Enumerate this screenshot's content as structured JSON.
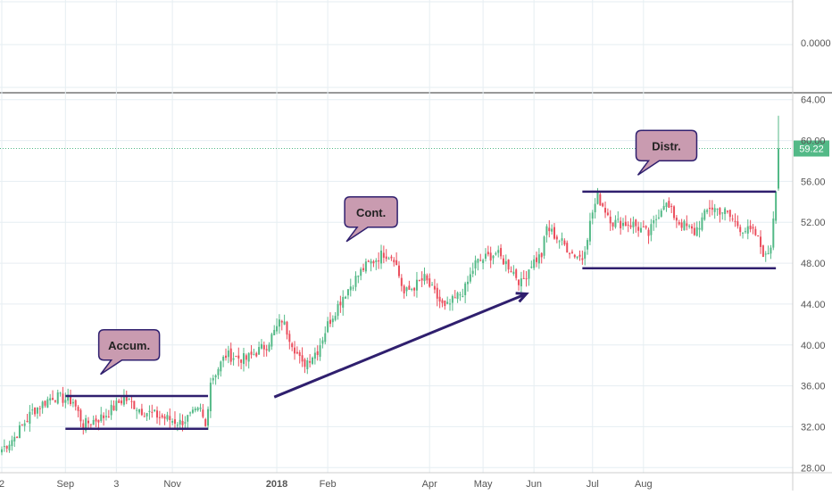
{
  "colors": {
    "up": "#53b987",
    "down": "#eb4d5c",
    "grid": "#e6eef2",
    "axis_text": "#555555",
    "annotation_line": "#2f1f6e",
    "callout_fill": "#c99bb0",
    "callout_stroke": "#2f1f6e",
    "price_tag": "#53b987",
    "separator": "#333333"
  },
  "top_pane": {
    "axis_label": "0.0000"
  },
  "chart_data": {
    "type": "candlestick",
    "title": "",
    "xlabel": "",
    "ylabel": "",
    "ylim": [
      27.5,
      64.5
    ],
    "y_ticks": [
      "28.00",
      "32.00",
      "36.00",
      "40.00",
      "44.00",
      "48.00",
      "52.00",
      "56.00",
      "60.00",
      "64.00"
    ],
    "x_ticks": [
      "2",
      "Sep",
      "3",
      "Nov",
      "2018",
      "Feb",
      "Apr",
      "May",
      "Jun",
      "Jul",
      "Aug"
    ],
    "last_price": "59.22",
    "grid": true,
    "anchors": [
      {
        "i": 0,
        "v": 29.8
      },
      {
        "i": 5,
        "v": 31.0
      },
      {
        "i": 12,
        "v": 33.5
      },
      {
        "i": 20,
        "v": 35.0
      },
      {
        "i": 28,
        "v": 34.5
      },
      {
        "i": 32,
        "v": 32.2
      },
      {
        "i": 40,
        "v": 33.0
      },
      {
        "i": 48,
        "v": 34.8
      },
      {
        "i": 55,
        "v": 33.6
      },
      {
        "i": 62,
        "v": 33.0
      },
      {
        "i": 70,
        "v": 32.4
      },
      {
        "i": 78,
        "v": 33.6
      },
      {
        "i": 80,
        "v": 32.0
      },
      {
        "i": 82,
        "v": 36.5
      },
      {
        "i": 88,
        "v": 39.0
      },
      {
        "i": 96,
        "v": 38.6
      },
      {
        "i": 104,
        "v": 40.0
      },
      {
        "i": 110,
        "v": 42.5
      },
      {
        "i": 118,
        "v": 38.0
      },
      {
        "i": 124,
        "v": 39.5
      },
      {
        "i": 128,
        "v": 42.0
      },
      {
        "i": 134,
        "v": 44.8
      },
      {
        "i": 142,
        "v": 47.5
      },
      {
        "i": 150,
        "v": 49.0
      },
      {
        "i": 154,
        "v": 48.6
      },
      {
        "i": 158,
        "v": 45.0
      },
      {
        "i": 166,
        "v": 46.5
      },
      {
        "i": 170,
        "v": 45.0
      },
      {
        "i": 174,
        "v": 43.5
      },
      {
        "i": 182,
        "v": 45.5
      },
      {
        "i": 186,
        "v": 48.0
      },
      {
        "i": 194,
        "v": 49.0
      },
      {
        "i": 200,
        "v": 47.5
      },
      {
        "i": 204,
        "v": 46.0
      },
      {
        "i": 208,
        "v": 48.0
      },
      {
        "i": 212,
        "v": 48.8
      },
      {
        "i": 214,
        "v": 51.5
      },
      {
        "i": 218,
        "v": 50.5
      },
      {
        "i": 224,
        "v": 49.0
      },
      {
        "i": 228,
        "v": 48.5
      },
      {
        "i": 232,
        "v": 53.0
      },
      {
        "i": 234,
        "v": 54.5
      },
      {
        "i": 240,
        "v": 52.0
      },
      {
        "i": 248,
        "v": 51.8
      },
      {
        "i": 254,
        "v": 50.8
      },
      {
        "i": 260,
        "v": 54.0
      },
      {
        "i": 266,
        "v": 52.0
      },
      {
        "i": 272,
        "v": 51.0
      },
      {
        "i": 278,
        "v": 53.5
      },
      {
        "i": 284,
        "v": 53.0
      },
      {
        "i": 290,
        "v": 51.5
      },
      {
        "i": 296,
        "v": 50.8
      },
      {
        "i": 300,
        "v": 48.5
      },
      {
        "i": 302,
        "v": 49.8
      },
      {
        "i": 304,
        "v": 55.5
      },
      {
        "i": 305,
        "v": 59.22
      }
    ],
    "annotations": {
      "callouts": [
        {
          "label": "Accum.",
          "price": 40.0,
          "index": 50
        },
        {
          "label": "Cont.",
          "price": 53.0,
          "index": 145
        },
        {
          "label": "Distr.",
          "price": 59.5,
          "index": 261
        }
      ],
      "ranges": [
        {
          "name": "accumulation",
          "top": 35.0,
          "bottom": 31.8,
          "from": 25,
          "to": 81
        },
        {
          "name": "distribution",
          "top": 55.0,
          "bottom": 47.5,
          "from": 228,
          "to": 304
        }
      ],
      "trend_arrow": {
        "from": {
          "index": 107,
          "price": 34.9
        },
        "to": {
          "index": 206,
          "price": 45.0
        }
      }
    }
  }
}
